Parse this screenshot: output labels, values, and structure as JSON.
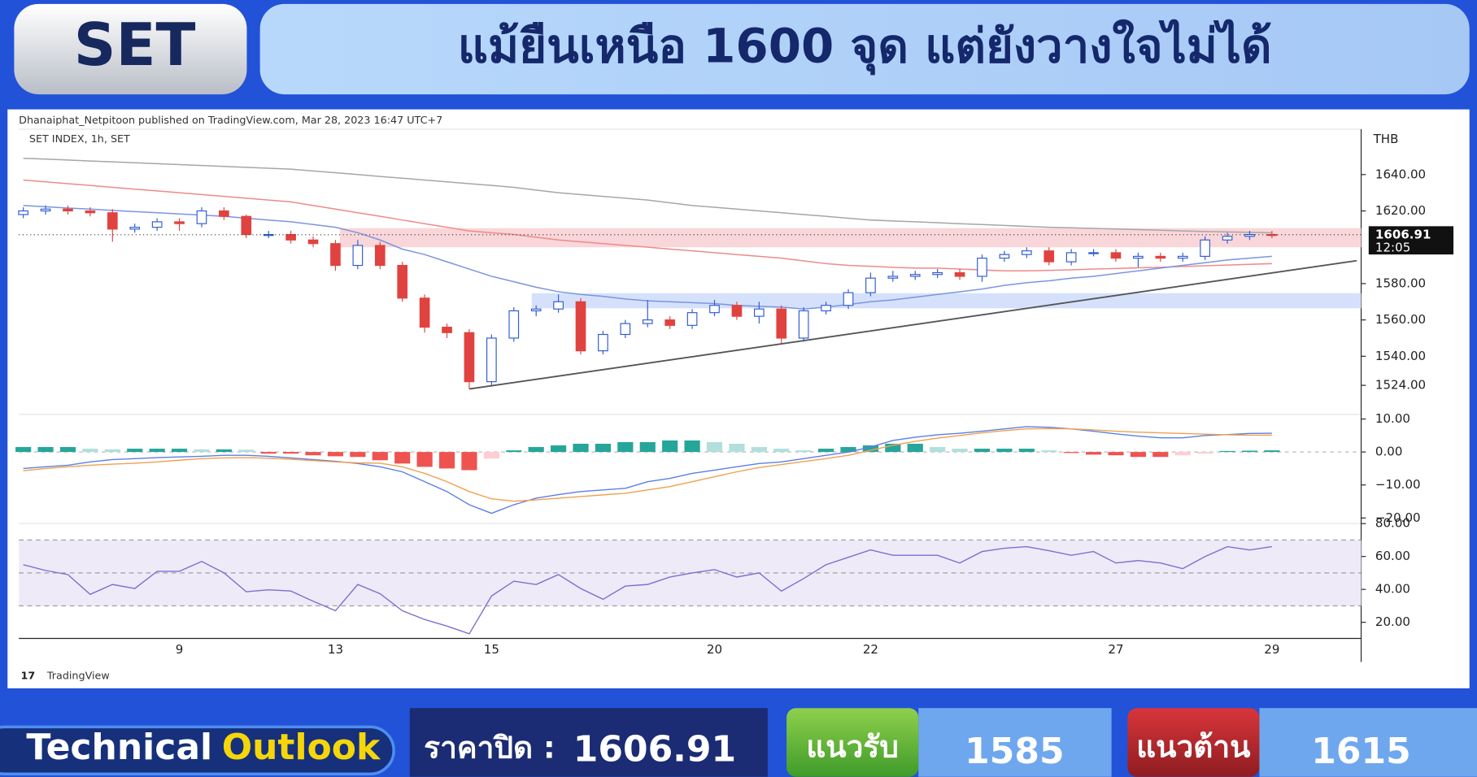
{
  "header": {
    "badge": "SET",
    "title": "แม้ยืนเหนือ 1600 จุด แต่ยังวางใจไม่ได้"
  },
  "source": {
    "attribution": "Dhanaiphat_Netpitoon published on TradingView.com, Mar 28, 2023 16:47 UTC+7",
    "symbol": "SET INDEX, 1h, SET",
    "currency": "THB",
    "last_price": 1606.91,
    "countdown": "12:05",
    "brand": "TradingView"
  },
  "chart_data": [
    {
      "type": "candlestick",
      "categories": [
        null,
        null,
        null,
        null,
        null,
        null,
        null,
        "9",
        null,
        null,
        null,
        null,
        null,
        null,
        "13",
        null,
        null,
        null,
        null,
        null,
        null,
        "15",
        null,
        null,
        null,
        null,
        null,
        null,
        null,
        null,
        null,
        "20",
        null,
        null,
        null,
        null,
        null,
        null,
        "22",
        null,
        null,
        null,
        null,
        null,
        null,
        null,
        null,
        null,
        null,
        "27",
        null,
        null,
        null,
        null,
        null,
        null,
        "29"
      ],
      "open": [
        1618,
        1620,
        1621,
        1620,
        1619,
        1610,
        1611,
        1614,
        1613,
        1620,
        1617,
        1607,
        1607,
        1604,
        1602,
        1590,
        1601,
        1590,
        1572,
        1556,
        1553,
        1526,
        1550,
        1565,
        1566,
        1570,
        1543,
        1552,
        1558,
        1560,
        1557,
        1564,
        1568,
        1562,
        1566,
        1550,
        1565,
        1568,
        1575,
        1583,
        1584,
        1585,
        1586,
        1584,
        1594,
        1596,
        1598,
        1592,
        1597,
        1597,
        1594,
        1595,
        1594,
        1595,
        1604,
        1606,
        1607
      ],
      "high": [
        1622,
        1623,
        1623,
        1622,
        1621,
        1613,
        1616,
        1616,
        1622,
        1622,
        1618,
        1609,
        1609,
        1606,
        1604,
        1604,
        1603,
        1592,
        1574,
        1558,
        1555,
        1552,
        1567,
        1568,
        1574,
        1572,
        1554,
        1560,
        1571,
        1562,
        1566,
        1571,
        1570,
        1570,
        1568,
        1567,
        1570,
        1577,
        1586,
        1587,
        1587,
        1588,
        1588,
        1596,
        1598,
        1600,
        1600,
        1599,
        1599,
        1599,
        1597,
        1597,
        1597,
        1606,
        1608,
        1609,
        1609
      ],
      "low": [
        1616,
        1618,
        1618,
        1617,
        1603,
        1608,
        1609,
        1609,
        1611,
        1615,
        1605,
        1605,
        1602,
        1600,
        1587,
        1588,
        1588,
        1570,
        1553,
        1550,
        1522,
        1524,
        1548,
        1562,
        1564,
        1541,
        1541,
        1550,
        1556,
        1555,
        1555,
        1562,
        1560,
        1558,
        1547,
        1548,
        1563,
        1566,
        1573,
        1581,
        1582,
        1583,
        1582,
        1581,
        1592,
        1594,
        1590,
        1590,
        1595,
        1592,
        1589,
        1592,
        1592,
        1593,
        1602,
        1604,
        1605
      ],
      "close": [
        1620,
        1621,
        1620,
        1619,
        1610,
        1611,
        1614,
        1613,
        1620,
        1617,
        1607,
        1607,
        1604,
        1602,
        1590,
        1601,
        1590,
        1572,
        1556,
        1553,
        1526,
        1550,
        1565,
        1566,
        1570,
        1543,
        1552,
        1558,
        1560,
        1557,
        1564,
        1568,
        1562,
        1566,
        1550,
        1565,
        1568,
        1575,
        1583,
        1584,
        1585,
        1586,
        1584,
        1594,
        1596,
        1598,
        1592,
        1597,
        1597,
        1594,
        1595,
        1594,
        1595,
        1604,
        1606,
        1607,
        1606.91
      ],
      "up_color": "#ffffff",
      "up_border": "#2f5bd3",
      "down_color": "#e0433f",
      "series": [
        {
          "color": "#a6a6a6",
          "values": [
            1649,
            1648.5,
            1648,
            1647.5,
            1647,
            1646.5,
            1646,
            1645.5,
            1645,
            1644.5,
            1644,
            1643.5,
            1643,
            1642,
            1641,
            1640,
            1639,
            1638,
            1637,
            1636,
            1635,
            1634,
            1633,
            1631.5,
            1630,
            1629,
            1628,
            1627,
            1626,
            1624.5,
            1623,
            1622,
            1621,
            1620,
            1619,
            1618,
            1617,
            1616,
            1615,
            1614.5,
            1614,
            1613.5,
            1613,
            1612.5,
            1612,
            1611.5,
            1611,
            1610.7,
            1610.4,
            1610,
            1609.7,
            1609.4,
            1609,
            1608.7,
            1608.4,
            1608.2,
            1608
          ]
        },
        {
          "color": "#ee8a8a",
          "values": [
            1637,
            1636,
            1635,
            1634,
            1633,
            1632,
            1631,
            1630,
            1629,
            1628,
            1627,
            1626,
            1625,
            1623,
            1621,
            1619,
            1617,
            1615,
            1613,
            1611,
            1609,
            1608,
            1607,
            1605.5,
            1604,
            1603,
            1602,
            1601,
            1600,
            1599,
            1598,
            1597,
            1596,
            1595,
            1594,
            1592.5,
            1591,
            1590,
            1589.5,
            1589,
            1588.5,
            1588.5,
            1588,
            1587.5,
            1587,
            1587,
            1587.3,
            1587.6,
            1588,
            1588.3,
            1588.7,
            1589,
            1589.4,
            1589.8,
            1590.2,
            1590.6,
            1591
          ]
        },
        {
          "color": "#7b95e0",
          "values": [
            1623,
            1622.3,
            1621.6,
            1621,
            1620.3,
            1619.6,
            1619,
            1618.3,
            1617.7,
            1617,
            1616,
            1615,
            1614,
            1612.5,
            1611,
            1608,
            1604,
            1599,
            1596,
            1592,
            1588,
            1584,
            1581,
            1578,
            1575.5,
            1574,
            1573,
            1571.5,
            1570.5,
            1570,
            1569.5,
            1569,
            1568,
            1567.5,
            1567,
            1566,
            1567,
            1568.5,
            1570,
            1571,
            1572.5,
            1574,
            1575.5,
            1577,
            1579,
            1580.5,
            1581.5,
            1583,
            1584,
            1585.5,
            1587,
            1588.5,
            1590,
            1591.5,
            1593,
            1594,
            1595
          ]
        }
      ],
      "zones": [
        {
          "low": 1600,
          "high": 1610.5,
          "start": 14.2,
          "color": "#f9d6d9"
        },
        {
          "low": 1566.4,
          "high": 1574.7,
          "start": 22.8,
          "color": "#d5e1fb"
        }
      ],
      "trendline": {
        "x": [
          20,
          59.8
        ],
        "y": [
          1522,
          1592.6
        ],
        "color": "#555555"
      },
      "xlim": [
        -0.2,
        60
      ],
      "ylim": [
        1508,
        1665
      ],
      "yticks": [
        {
          "value": 1524,
          "label": "1524.00"
        },
        {
          "value": 1540,
          "label": "1540.00"
        },
        {
          "value": 1560,
          "label": "1560.00"
        },
        {
          "value": 1580,
          "label": "1580.00"
        },
        {
          "value": 1620,
          "label": "1620.00"
        },
        {
          "value": 1640,
          "label": "1640.00"
        }
      ]
    },
    {
      "type": "macd",
      "values": [
        1.5,
        1.5,
        1.5,
        1,
        0.8,
        1,
        1,
        1,
        0.8,
        0.8,
        0.7,
        -0.5,
        -0.5,
        -1,
        -1.3,
        -1.5,
        -2.5,
        -3.5,
        -4.5,
        -5,
        -5.5,
        -2,
        0.5,
        1.5,
        2,
        2.5,
        2.5,
        3,
        3,
        3.5,
        3.5,
        3,
        2.5,
        1.5,
        1,
        0.5,
        1,
        1.5,
        2,
        2.5,
        2.5,
        1.5,
        1,
        1,
        1,
        1,
        0.5,
        -0.3,
        -0.8,
        -1,
        -1.5,
        -1.5,
        -1,
        -0.5,
        0.3,
        0.4,
        0.5
      ],
      "colors": {
        "up_rising": "#26a69a",
        "up_falling": "#b2dfdb",
        "down_falling": "#ef5350",
        "down_rising": "#ffcdd2"
      },
      "series": [
        {
          "color": "#5b7fe6",
          "values": [
            -5,
            -4.5,
            -4,
            -3,
            -2.3,
            -2,
            -1.7,
            -1.5,
            -1.3,
            -1,
            -1,
            -1.3,
            -1.8,
            -2.3,
            -2.8,
            -3.5,
            -4.5,
            -6,
            -9,
            -12,
            -16,
            -18.6,
            -16,
            -14,
            -12.9,
            -12,
            -11.5,
            -11,
            -9,
            -8,
            -6.5,
            -5.5,
            -4.5,
            -3.5,
            -3,
            -2,
            -1,
            0,
            1.5,
            3.5,
            4.5,
            5.2,
            5.7,
            6.3,
            7,
            7.7,
            7.5,
            7,
            6.3,
            5.5,
            4.8,
            4.3,
            4.3,
            5,
            5.3,
            5.6,
            5.7
          ]
        },
        {
          "color": "#f0a050",
          "values": [
            -5.7,
            -5,
            -4.5,
            -4,
            -3.7,
            -3.4,
            -3,
            -2.5,
            -2,
            -1.8,
            -1.7,
            -1.9,
            -2.2,
            -2.6,
            -3,
            -3.3,
            -3.4,
            -4.5,
            -6.5,
            -9,
            -12,
            -14.2,
            -14.9,
            -14.5,
            -14,
            -13.5,
            -13,
            -12.5,
            -11.5,
            -10.5,
            -9,
            -7.5,
            -6,
            -4.7,
            -3.8,
            -2.9,
            -2,
            -1,
            0.5,
            2,
            3.2,
            4.2,
            5,
            5.8,
            6.5,
            7,
            7.1,
            7,
            6.7,
            6.3,
            6,
            5.8,
            5.6,
            5.4,
            5.2,
            5.1,
            5.1
          ]
        }
      ],
      "zero_line": true,
      "xlim": [
        -0.2,
        60
      ],
      "ylim": [
        -21.7,
        11.4
      ],
      "yticks": [
        {
          "value": 10,
          "label": "10.00"
        },
        {
          "value": 0,
          "label": "0.00"
        },
        {
          "value": -10,
          "label": "−10.00"
        },
        {
          "value": -20,
          "label": "−20.00"
        }
      ]
    },
    {
      "type": "rsi",
      "values": [
        55,
        51.5,
        49,
        37,
        43,
        40.5,
        51,
        51,
        57,
        50,
        38.6,
        39.7,
        39,
        32.8,
        27,
        43,
        37.4,
        27,
        21.7,
        17.7,
        13,
        36,
        45,
        43,
        49,
        40.5,
        34,
        42,
        43,
        47.5,
        50,
        52,
        47.5,
        50,
        39,
        46.6,
        55,
        59.5,
        64,
        60.7,
        60.7,
        60.7,
        56,
        63,
        65,
        66,
        63.5,
        60.7,
        63,
        56,
        57.5,
        56,
        52.6,
        60,
        66,
        64,
        66
      ],
      "color": "#7e6fd0",
      "band": [
        30,
        70
      ],
      "band_color": "#efeaf8",
      "levels": [
        30,
        50,
        70
      ],
      "xlim": [
        -0.2,
        60
      ],
      "ylim": [
        10.2,
        80
      ],
      "yticks": [
        {
          "value": 20,
          "label": "20.00"
        },
        {
          "value": 40,
          "label": "40.00"
        },
        {
          "value": 60,
          "label": "60.00"
        },
        {
          "value": 80,
          "label": "80.00"
        }
      ]
    }
  ],
  "footer": {
    "brand_1": "Technical",
    "brand_2": "Outlook",
    "close_label": "ราคาปิด :",
    "close": 1606.91,
    "support_label": "แนวรับ",
    "support": 1585,
    "resistance_label": "แนวต้าน",
    "resistance": 1615
  }
}
